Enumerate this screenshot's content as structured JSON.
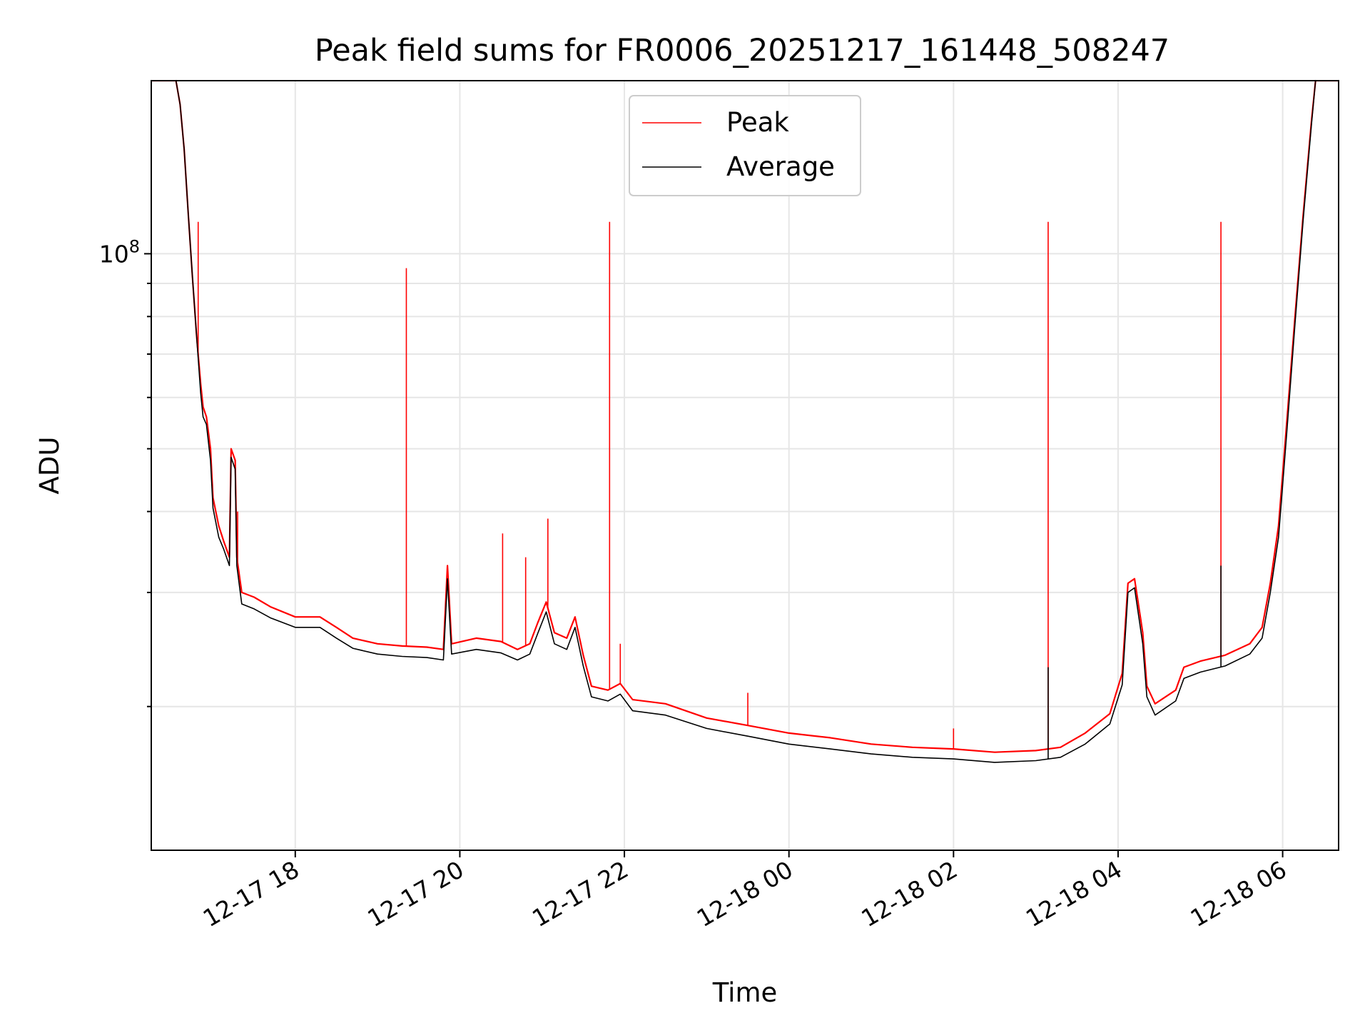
{
  "chart_data": {
    "type": "line",
    "title": "Peak field sums for FR0006_20251217_161448_508247",
    "xlabel": "Time",
    "ylabel": "ADU",
    "yscale": "log",
    "ylim": [
      12000000,
      185000000
    ],
    "xlim_hours": [
      16.25,
      30.68
    ],
    "x_ticks": [
      {
        "hour": 18,
        "label": "12-17 18"
      },
      {
        "hour": 20,
        "label": "12-17 20"
      },
      {
        "hour": 22,
        "label": "12-17 22"
      },
      {
        "hour": 24,
        "label": "12-18 00"
      },
      {
        "hour": 26,
        "label": "12-18 02"
      },
      {
        "hour": 28,
        "label": "12-18 04"
      },
      {
        "hour": 30,
        "label": "12-18 06"
      }
    ],
    "y_major_tick": {
      "value": 100000000,
      "label_base": "10",
      "label_exp": "8"
    },
    "grid": true,
    "legend_position": "top-center",
    "series": [
      {
        "name": "Peak",
        "color": "#ff0000",
        "points": [
          [
            16.25,
            185000000
          ],
          [
            16.55,
            185000000
          ],
          [
            16.6,
            170000000
          ],
          [
            16.65,
            145000000
          ],
          [
            16.7,
            115000000
          ],
          [
            16.75,
            92000000
          ],
          [
            16.8,
            75000000
          ],
          [
            16.85,
            63000000
          ],
          [
            16.88,
            58000000
          ],
          [
            16.92,
            56000000
          ],
          [
            16.97,
            50000000
          ],
          [
            17.0,
            42000000
          ],
          [
            17.07,
            38000000
          ],
          [
            17.13,
            36000000
          ],
          [
            17.2,
            34000000
          ],
          [
            17.22,
            50000000
          ],
          [
            17.27,
            48000000
          ],
          [
            17.29,
            34000000
          ],
          [
            17.35,
            30000000
          ],
          [
            17.5,
            29500000
          ],
          [
            17.7,
            28500000
          ],
          [
            18.0,
            27500000
          ],
          [
            18.3,
            27500000
          ],
          [
            18.5,
            26500000
          ],
          [
            18.7,
            25500000
          ],
          [
            19.0,
            25000000
          ],
          [
            19.3,
            24800000
          ],
          [
            19.6,
            24700000
          ],
          [
            19.8,
            24500000
          ],
          [
            19.85,
            33000000
          ],
          [
            19.9,
            25000000
          ],
          [
            20.2,
            25500000
          ],
          [
            20.5,
            25200000
          ],
          [
            20.7,
            24500000
          ],
          [
            20.85,
            25000000
          ],
          [
            20.95,
            27000000
          ],
          [
            21.05,
            29000000
          ],
          [
            21.15,
            26000000
          ],
          [
            21.3,
            25500000
          ],
          [
            21.4,
            27500000
          ],
          [
            21.5,
            24000000
          ],
          [
            21.6,
            21500000
          ],
          [
            21.8,
            21200000
          ],
          [
            21.95,
            21700000
          ],
          [
            22.1,
            20500000
          ],
          [
            22.5,
            20200000
          ],
          [
            23.0,
            19200000
          ],
          [
            23.5,
            18700000
          ],
          [
            24.0,
            18200000
          ],
          [
            24.5,
            17900000
          ],
          [
            25.0,
            17500000
          ],
          [
            25.5,
            17300000
          ],
          [
            26.0,
            17200000
          ],
          [
            26.5,
            17000000
          ],
          [
            27.0,
            17100000
          ],
          [
            27.3,
            17300000
          ],
          [
            27.6,
            18200000
          ],
          [
            27.9,
            19500000
          ],
          [
            28.05,
            22500000
          ],
          [
            28.12,
            31000000
          ],
          [
            28.2,
            31500000
          ],
          [
            28.3,
            26000000
          ],
          [
            28.35,
            21500000
          ],
          [
            28.45,
            20200000
          ],
          [
            28.7,
            21200000
          ],
          [
            28.8,
            23000000
          ],
          [
            29.0,
            23500000
          ],
          [
            29.3,
            24000000
          ],
          [
            29.6,
            25000000
          ],
          [
            29.75,
            26500000
          ],
          [
            29.85,
            31000000
          ],
          [
            29.95,
            38000000
          ],
          [
            30.05,
            55000000
          ],
          [
            30.15,
            80000000
          ],
          [
            30.25,
            115000000
          ],
          [
            30.35,
            160000000
          ],
          [
            30.4,
            185000000
          ],
          [
            30.68,
            185000000
          ]
        ],
        "spikes": [
          [
            16.82,
            112000000
          ],
          [
            17.3,
            40000000
          ],
          [
            19.35,
            95000000
          ],
          [
            20.52,
            37000000
          ],
          [
            20.8,
            34000000
          ],
          [
            21.07,
            39000000
          ],
          [
            21.82,
            112000000
          ],
          [
            21.95,
            25000000
          ],
          [
            23.5,
            21000000
          ],
          [
            26.0,
            18500000
          ],
          [
            27.15,
            112000000
          ],
          [
            29.25,
            112000000
          ]
        ]
      },
      {
        "name": "Average",
        "color": "#000000",
        "points": [
          [
            16.25,
            185000000
          ],
          [
            16.55,
            185000000
          ],
          [
            16.6,
            170000000
          ],
          [
            16.65,
            145000000
          ],
          [
            16.7,
            115000000
          ],
          [
            16.75,
            92000000
          ],
          [
            16.8,
            75000000
          ],
          [
            16.85,
            61000000
          ],
          [
            16.88,
            56000000
          ],
          [
            16.92,
            54500000
          ],
          [
            16.97,
            48000000
          ],
          [
            17.0,
            40500000
          ],
          [
            17.07,
            36500000
          ],
          [
            17.13,
            35000000
          ],
          [
            17.2,
            33000000
          ],
          [
            17.22,
            48500000
          ],
          [
            17.27,
            46500000
          ],
          [
            17.29,
            33000000
          ],
          [
            17.35,
            28800000
          ],
          [
            17.5,
            28300000
          ],
          [
            17.7,
            27400000
          ],
          [
            18.0,
            26500000
          ],
          [
            18.3,
            26500000
          ],
          [
            18.5,
            25500000
          ],
          [
            18.7,
            24600000
          ],
          [
            19.0,
            24100000
          ],
          [
            19.3,
            23900000
          ],
          [
            19.6,
            23800000
          ],
          [
            19.8,
            23600000
          ],
          [
            19.85,
            31500000
          ],
          [
            19.9,
            24100000
          ],
          [
            20.2,
            24500000
          ],
          [
            20.5,
            24200000
          ],
          [
            20.7,
            23600000
          ],
          [
            20.85,
            24100000
          ],
          [
            20.95,
            26000000
          ],
          [
            21.05,
            28000000
          ],
          [
            21.15,
            25000000
          ],
          [
            21.3,
            24500000
          ],
          [
            21.4,
            26500000
          ],
          [
            21.5,
            23100000
          ],
          [
            21.6,
            20700000
          ],
          [
            21.8,
            20400000
          ],
          [
            21.95,
            20900000
          ],
          [
            22.1,
            19700000
          ],
          [
            22.5,
            19400000
          ],
          [
            23.0,
            18500000
          ],
          [
            23.5,
            18000000
          ],
          [
            24.0,
            17500000
          ],
          [
            24.5,
            17200000
          ],
          [
            25.0,
            16900000
          ],
          [
            25.5,
            16700000
          ],
          [
            26.0,
            16600000
          ],
          [
            26.5,
            16400000
          ],
          [
            27.0,
            16500000
          ],
          [
            27.3,
            16700000
          ],
          [
            27.6,
            17500000
          ],
          [
            27.9,
            18800000
          ],
          [
            28.05,
            21600000
          ],
          [
            28.12,
            30000000
          ],
          [
            28.2,
            30500000
          ],
          [
            28.3,
            25000000
          ],
          [
            28.35,
            20700000
          ],
          [
            28.45,
            19400000
          ],
          [
            28.7,
            20400000
          ],
          [
            28.8,
            22100000
          ],
          [
            29.0,
            22600000
          ],
          [
            29.3,
            23100000
          ],
          [
            29.6,
            24100000
          ],
          [
            29.75,
            25500000
          ],
          [
            29.85,
            30000000
          ],
          [
            29.95,
            36500000
          ],
          [
            30.05,
            53000000
          ],
          [
            30.15,
            78000000
          ],
          [
            30.25,
            113000000
          ],
          [
            30.35,
            158000000
          ],
          [
            30.4,
            185000000
          ],
          [
            30.68,
            185000000
          ]
        ],
        "spikes": [
          [
            27.15,
            23000000
          ],
          [
            29.25,
            33000000
          ]
        ]
      }
    ]
  }
}
